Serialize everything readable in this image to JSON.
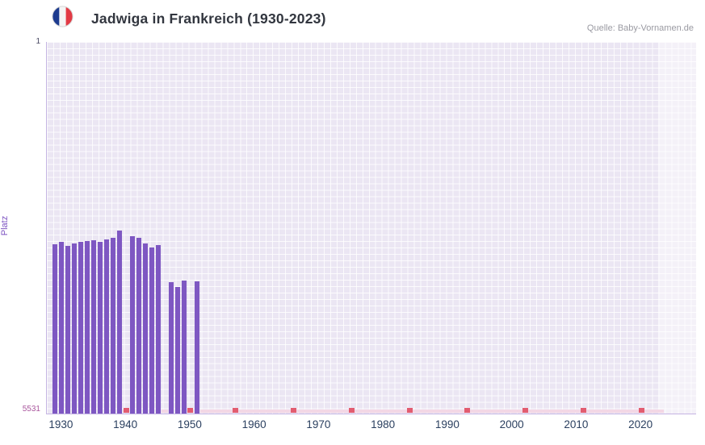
{
  "header": {
    "title": "Jadwiga in Frankreich (1930-2023)",
    "source": "Quelle: Baby-Vornamen.de",
    "flag": {
      "blue": "#1d3b8f",
      "white": "#f5f5f5",
      "red": "#e23a45",
      "ring": "#d6d6d6"
    }
  },
  "chart": {
    "ylabel": "Platz",
    "y_top_label": "1",
    "y_bottom_label": "5531"
  },
  "chart_data": {
    "type": "bar",
    "title": "Jadwiga in Frankreich (1930-2023)",
    "xlabel": "",
    "ylabel": "Platz",
    "y_axis": {
      "min": 1,
      "max": 5531,
      "inverted": true,
      "note": "rank 1 is best (top), bars rise from bottom up to achieved rank"
    },
    "x_domain": [
      1927.7,
      2028.5
    ],
    "x_ticks": [
      1930,
      1940,
      1950,
      1960,
      1970,
      1980,
      1990,
      2000,
      2010,
      2020
    ],
    "series": [
      {
        "name": "Platz",
        "points": [
          {
            "year": 1929,
            "rank": 3050
          },
          {
            "year": 1930,
            "rank": 3010
          },
          {
            "year": 1931,
            "rank": 3070
          },
          {
            "year": 1932,
            "rank": 3045
          },
          {
            "year": 1933,
            "rank": 3020
          },
          {
            "year": 1934,
            "rank": 3000
          },
          {
            "year": 1935,
            "rank": 2995
          },
          {
            "year": 1936,
            "rank": 3010
          },
          {
            "year": 1937,
            "rank": 2980
          },
          {
            "year": 1938,
            "rank": 2950
          },
          {
            "year": 1939,
            "rank": 2840
          },
          {
            "year": 1941,
            "rank": 2930
          },
          {
            "year": 1942,
            "rank": 2955
          },
          {
            "year": 1943,
            "rank": 3040
          },
          {
            "year": 1944,
            "rank": 3100
          },
          {
            "year": 1945,
            "rank": 3065
          },
          {
            "year": 1947,
            "rank": 3620
          },
          {
            "year": 1948,
            "rank": 3700
          },
          {
            "year": 1949,
            "rank": 3600
          },
          {
            "year": 1951,
            "rank": 3610
          }
        ]
      }
    ],
    "unranked_year_ranges": [
      [
        1940,
        1940
      ],
      [
        1946,
        1946
      ],
      [
        1950,
        1950
      ],
      [
        1952,
        2023
      ]
    ],
    "decade_marker_years": [
      1940,
      1950,
      1957,
      1966,
      1975,
      1984,
      1993,
      2002,
      2011,
      2020
    ],
    "highlight_band": {
      "from_year": 2022.6,
      "to_year": 2028.5
    },
    "colors": {
      "bar": "#7e57c2",
      "plot_bg": "#ebe6f3",
      "grid": "#ffffff",
      "light_mark": "#f3d7e5",
      "dark_mark": "#e25c70",
      "x_tick_label": "#2a3f5f",
      "y_top_label": "#4a4a63",
      "y_bottom_label": "#a9569d",
      "y_axis_title": "#7d53c1"
    },
    "legend": "none",
    "grid": "fine white mesh on lavender background"
  }
}
